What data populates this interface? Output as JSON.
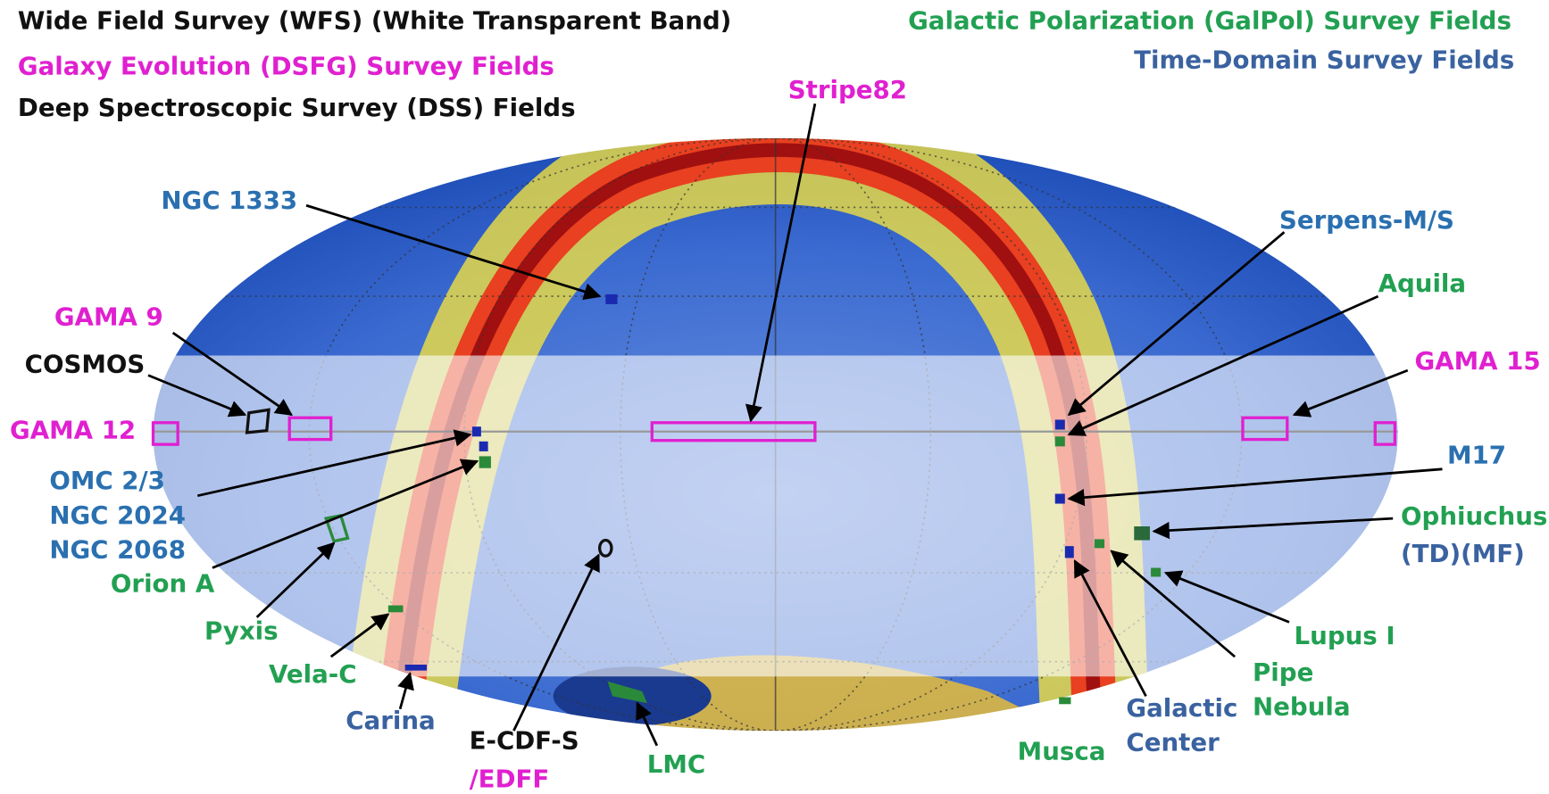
{
  "legend": [
    {
      "text": "Wide Field Survey (WFS) (White Transparent Band)",
      "color": "#111111"
    },
    {
      "text": "Galaxy Evolution (DSFG) Survey Fields",
      "color": "#e020d0"
    },
    {
      "text": "Deep Spectroscopic Survey (DSS) Fields",
      "color": "#111111"
    },
    {
      "text": "Galactic Polarization (GalPol) Survey Fields",
      "color": "#22a052"
    },
    {
      "text": "Time-Domain Survey Fields",
      "color": "#3a62a0"
    }
  ],
  "labels": [
    {
      "lines": [
        "Stripe82"
      ],
      "color": "#e020d0"
    },
    {
      "lines": [
        "NGC 1333"
      ],
      "color": "#2a70b0"
    },
    {
      "lines": [
        "Serpens-M/S"
      ],
      "color": "#2a70b0"
    },
    {
      "lines": [
        "Aquila"
      ],
      "color": "#22a052"
    },
    {
      "lines": [
        "GAMA 9"
      ],
      "color": "#e020d0"
    },
    {
      "lines": [
        "COSMOS"
      ],
      "color": "#111111"
    },
    {
      "lines": [
        "GAMA 15"
      ],
      "color": "#e020d0"
    },
    {
      "lines": [
        "GAMA 12"
      ],
      "color": "#e020d0"
    },
    {
      "lines": [
        "OMC 2/3",
        "NGC 2024",
        "NGC 2068"
      ],
      "color": "#2a70b0"
    },
    {
      "lines": [
        "M17"
      ],
      "color": "#2a70b0"
    },
    {
      "lines": [
        "Ophiuchus"
      ],
      "color": "#22a052"
    },
    {
      "lines": [
        "(TD)(MF)"
      ],
      "color": "#3a62a0"
    },
    {
      "lines": [
        "Orion A"
      ],
      "color": "#22a052"
    },
    {
      "lines": [
        "Pyxis"
      ],
      "color": "#22a052"
    },
    {
      "lines": [
        "Lupus I"
      ],
      "color": "#22a052"
    },
    {
      "lines": [
        "Vela-C"
      ],
      "color": "#22a052"
    },
    {
      "lines": [
        "Pipe",
        "Nebula"
      ],
      "color": "#22a052"
    },
    {
      "lines": [
        "Carina"
      ],
      "color": "#3a62a0"
    },
    {
      "lines": [
        "Galactic",
        "Center"
      ],
      "color": "#3a62a0"
    },
    {
      "lines": [
        "E-CDF-S"
      ],
      "color": "#111111"
    },
    {
      "lines": [
        "/EDFF"
      ],
      "color": "#e020d0"
    },
    {
      "lines": [
        "LMC"
      ],
      "color": "#22a052"
    },
    {
      "lines": [
        "Musca"
      ],
      "color": "#22a052"
    }
  ]
}
